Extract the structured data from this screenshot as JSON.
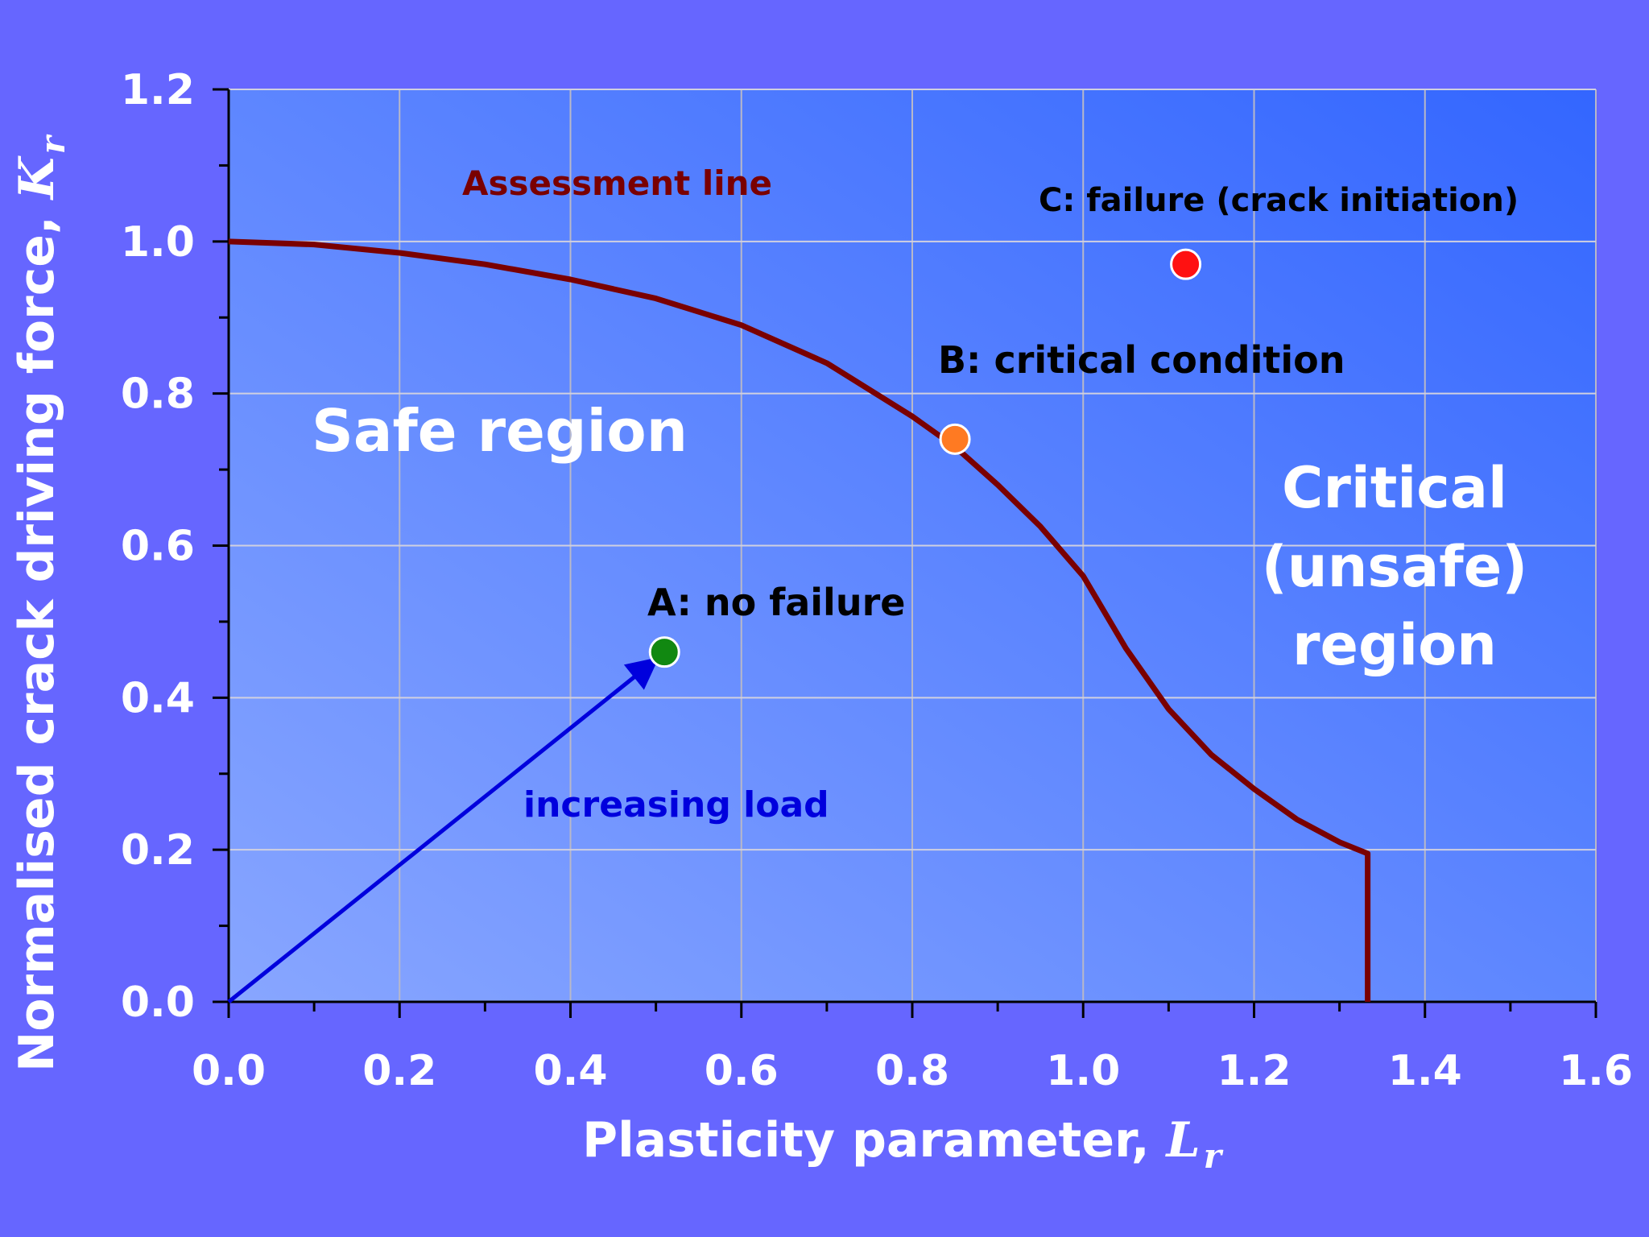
{
  "colors": {
    "background": "#6666ff",
    "plot_gradient_light": "#88a6ff",
    "plot_gradient_dark": "#3366ff",
    "assessment_line": "#7a0000",
    "load_arrow": "#0000dd",
    "point_a": "#118811",
    "point_b": "#ff7a22",
    "point_c": "#ff1111",
    "white_text": "#ffffff",
    "dark_text": "#000000"
  },
  "chart_data": {
    "type": "line",
    "xlabel": "Plasticity parameter, ",
    "xlabel_symbol": "L",
    "xlabel_subscript": "r",
    "ylabel": "Normalised crack driving force, ",
    "ylabel_symbol": "K",
    "ylabel_subscript": "r",
    "xlim": [
      0,
      1.6
    ],
    "ylim": [
      0,
      1.2
    ],
    "xticks": [
      "0.0",
      "0.2",
      "0.4",
      "0.6",
      "0.8",
      "1.0",
      "1.2",
      "1.4",
      "1.6"
    ],
    "yticks": [
      "0.0",
      "0.2",
      "0.4",
      "0.6",
      "0.8",
      "1.0",
      "1.2"
    ],
    "grid": true,
    "series": [
      {
        "name": "Assessment line",
        "x": [
          0.0,
          0.1,
          0.2,
          0.3,
          0.4,
          0.5,
          0.6,
          0.7,
          0.8,
          0.85,
          0.9,
          0.95,
          1.0,
          1.05,
          1.1,
          1.15,
          1.2,
          1.25,
          1.3,
          1.333,
          1.333
        ],
        "y": [
          1.0,
          0.996,
          0.985,
          0.97,
          0.95,
          0.925,
          0.89,
          0.84,
          0.77,
          0.73,
          0.68,
          0.625,
          0.56,
          0.465,
          0.385,
          0.325,
          0.28,
          0.24,
          0.21,
          0.195,
          0.0
        ]
      }
    ],
    "arrow": {
      "label": "increasing load",
      "from": [
        0.0,
        0.0
      ],
      "to": [
        0.5,
        0.45
      ]
    },
    "points": [
      {
        "label": "A: no failure",
        "x": 0.51,
        "y": 0.46
      },
      {
        "label": "B: critical condition",
        "x": 0.85,
        "y": 0.74
      },
      {
        "label": "C: failure (crack initiation)",
        "x": 1.12,
        "y": 0.97
      }
    ],
    "regions": {
      "safe": "Safe region",
      "critical": [
        "Critical",
        "(unsafe)",
        "region"
      ]
    }
  }
}
